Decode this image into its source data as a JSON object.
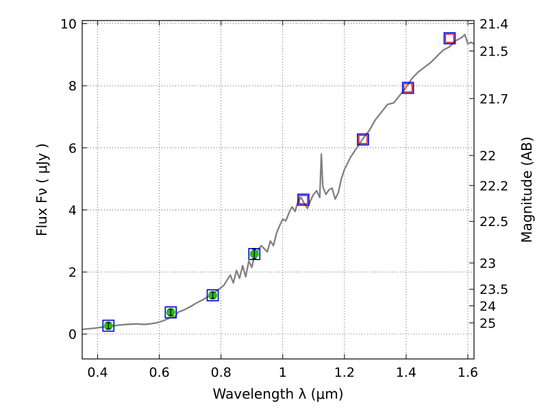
{
  "chart_data": {
    "type": "scatter",
    "xlabel": "Wavelength  λ (μm)",
    "ylabel": "Flux  Fν  ( μJy )",
    "y2label": "Magnitude (AB)",
    "xlim": [
      0.35,
      1.62
    ],
    "ylim": [
      -0.8,
      10.1
    ],
    "grid": true,
    "x_ticks": [
      0.4,
      0.6,
      0.8,
      1.0,
      1.2,
      1.4,
      1.6
    ],
    "x_tick_labels": [
      "0.4",
      "0.6",
      "0.8",
      "1",
      "1.2",
      "1.4",
      "1.6"
    ],
    "y_ticks": [
      0,
      2,
      4,
      6,
      8,
      10
    ],
    "y_tick_labels": [
      "0",
      "2",
      "4",
      "6",
      "8",
      "10"
    ],
    "mag_ticks": [
      21.4,
      21.5,
      21.7,
      22,
      22.2,
      22.5,
      23,
      23.5,
      24,
      25
    ],
    "mag_tick_labels": [
      "21.4",
      "21.5",
      "21.7",
      "22",
      "22.2",
      "22.5",
      "23",
      "23.5",
      "24",
      "25"
    ],
    "series": [
      {
        "style": "line",
        "color": "#808080",
        "x": [
          0.35,
          0.37,
          0.39,
          0.41,
          0.43,
          0.45,
          0.47,
          0.49,
          0.51,
          0.53,
          0.55,
          0.57,
          0.59,
          0.61,
          0.63,
          0.64,
          0.65,
          0.66,
          0.68,
          0.7,
          0.72,
          0.74,
          0.76,
          0.78,
          0.8,
          0.81,
          0.82,
          0.83,
          0.84,
          0.85,
          0.86,
          0.87,
          0.88,
          0.89,
          0.9,
          0.91,
          0.92,
          0.93,
          0.94,
          0.95,
          0.96,
          0.97,
          0.98,
          0.99,
          1.0,
          1.01,
          1.02,
          1.03,
          1.04,
          1.05,
          1.06,
          1.07,
          1.08,
          1.09,
          1.1,
          1.11,
          1.12,
          1.125,
          1.13,
          1.14,
          1.15,
          1.16,
          1.17,
          1.18,
          1.19,
          1.2,
          1.22,
          1.24,
          1.26,
          1.28,
          1.3,
          1.32,
          1.34,
          1.36,
          1.38,
          1.4,
          1.42,
          1.44,
          1.46,
          1.48,
          1.5,
          1.52,
          1.54,
          1.56,
          1.58,
          1.59,
          1.6,
          1.61,
          1.62
        ],
        "y": [
          0.15,
          0.17,
          0.19,
          0.22,
          0.24,
          0.27,
          0.29,
          0.31,
          0.32,
          0.33,
          0.31,
          0.33,
          0.36,
          0.42,
          0.5,
          0.58,
          0.55,
          0.7,
          0.78,
          0.88,
          1.0,
          1.1,
          1.22,
          1.35,
          1.5,
          1.58,
          1.75,
          1.9,
          1.65,
          2.05,
          1.8,
          2.2,
          1.85,
          2.35,
          2.15,
          2.6,
          2.7,
          2.85,
          2.75,
          2.65,
          3.0,
          2.85,
          3.25,
          3.5,
          3.7,
          3.65,
          3.9,
          4.1,
          3.95,
          4.3,
          4.4,
          4.2,
          4.05,
          4.3,
          4.5,
          4.62,
          4.4,
          5.8,
          4.75,
          4.5,
          4.65,
          4.7,
          4.35,
          4.55,
          5.0,
          5.3,
          5.7,
          6.0,
          6.3,
          6.55,
          6.9,
          7.15,
          7.4,
          7.45,
          7.7,
          7.95,
          8.25,
          8.45,
          8.6,
          8.75,
          8.95,
          9.15,
          9.25,
          9.45,
          9.55,
          9.65,
          9.35,
          9.4,
          9.35
        ]
      },
      {
        "style": "blue-squares",
        "color": "#0000cc",
        "x": [
          0.435,
          0.637,
          0.773,
          0.908,
          1.067,
          1.26,
          1.406,
          1.541
        ],
        "y": [
          0.27,
          0.7,
          1.25,
          2.58,
          4.33,
          6.27,
          7.93,
          9.53
        ]
      },
      {
        "style": "green-circles-errorbars",
        "color": "#22bb22",
        "x": [
          0.435,
          0.637,
          0.773,
          0.908
        ],
        "y": [
          0.27,
          0.7,
          1.25,
          2.58
        ],
        "err": [
          0.1,
          0.1,
          0.1,
          0.15
        ]
      },
      {
        "style": "red-squares",
        "color": "#cc0000",
        "x": [
          1.067,
          1.26,
          1.406,
          1.541
        ],
        "y": [
          4.33,
          6.27,
          7.93,
          9.53
        ]
      }
    ]
  }
}
